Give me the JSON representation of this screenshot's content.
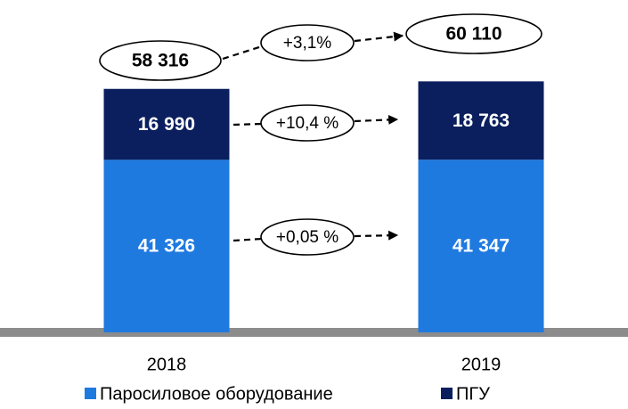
{
  "chart_data": {
    "type": "stacked_bar",
    "categories": [
      "2018",
      "2019"
    ],
    "series": [
      {
        "name": "Паросиловое оборудование",
        "color": "#1f7ae0",
        "values": [
          41326,
          41347
        ],
        "value_labels": [
          "41 326",
          "41 347"
        ]
      },
      {
        "name": "ПГУ",
        "color": "#0b1f5e",
        "values": [
          16990,
          18763
        ],
        "value_labels": [
          "16 990",
          "18 763"
        ]
      }
    ],
    "totals": {
      "values": [
        58316,
        60110
      ],
      "value_labels": [
        "58 316",
        "60 110"
      ]
    },
    "annotations": [
      "+3,1%",
      "+10,4 %",
      "+0,05 %"
    ],
    "ylim": [
      0,
      70000
    ]
  }
}
